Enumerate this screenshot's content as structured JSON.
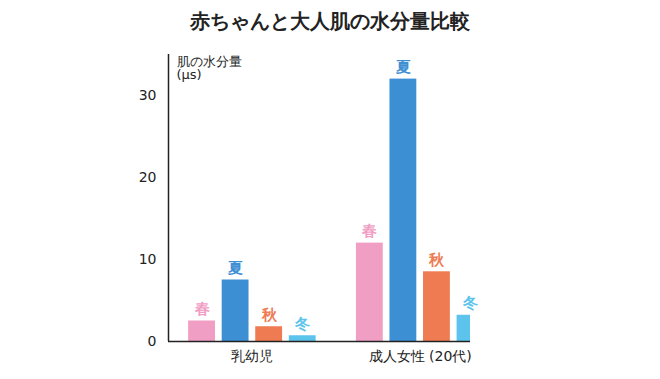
{
  "chart_data": {
    "type": "bar",
    "title": "赤ちゃんと大人肌の水分量比較",
    "ylabel": "肌の水分量\n(μs)",
    "categories": [
      "乳幼児",
      "成人女性 (20代)"
    ],
    "series": [
      {
        "name": "春",
        "color": "#f09ec4",
        "values": [
          2.5,
          12
        ]
      },
      {
        "name": "夏",
        "color": "#3d8fd4",
        "values": [
          7.5,
          32
        ]
      },
      {
        "name": "秋",
        "color": "#ee7b52",
        "values": [
          1.8,
          8.5
        ]
      },
      {
        "name": "冬",
        "color": "#5cc4ec",
        "values": [
          0.7,
          3.2
        ]
      }
    ],
    "ylim": [
      0,
      35
    ],
    "yticks": [
      0,
      10,
      20,
      30
    ]
  }
}
